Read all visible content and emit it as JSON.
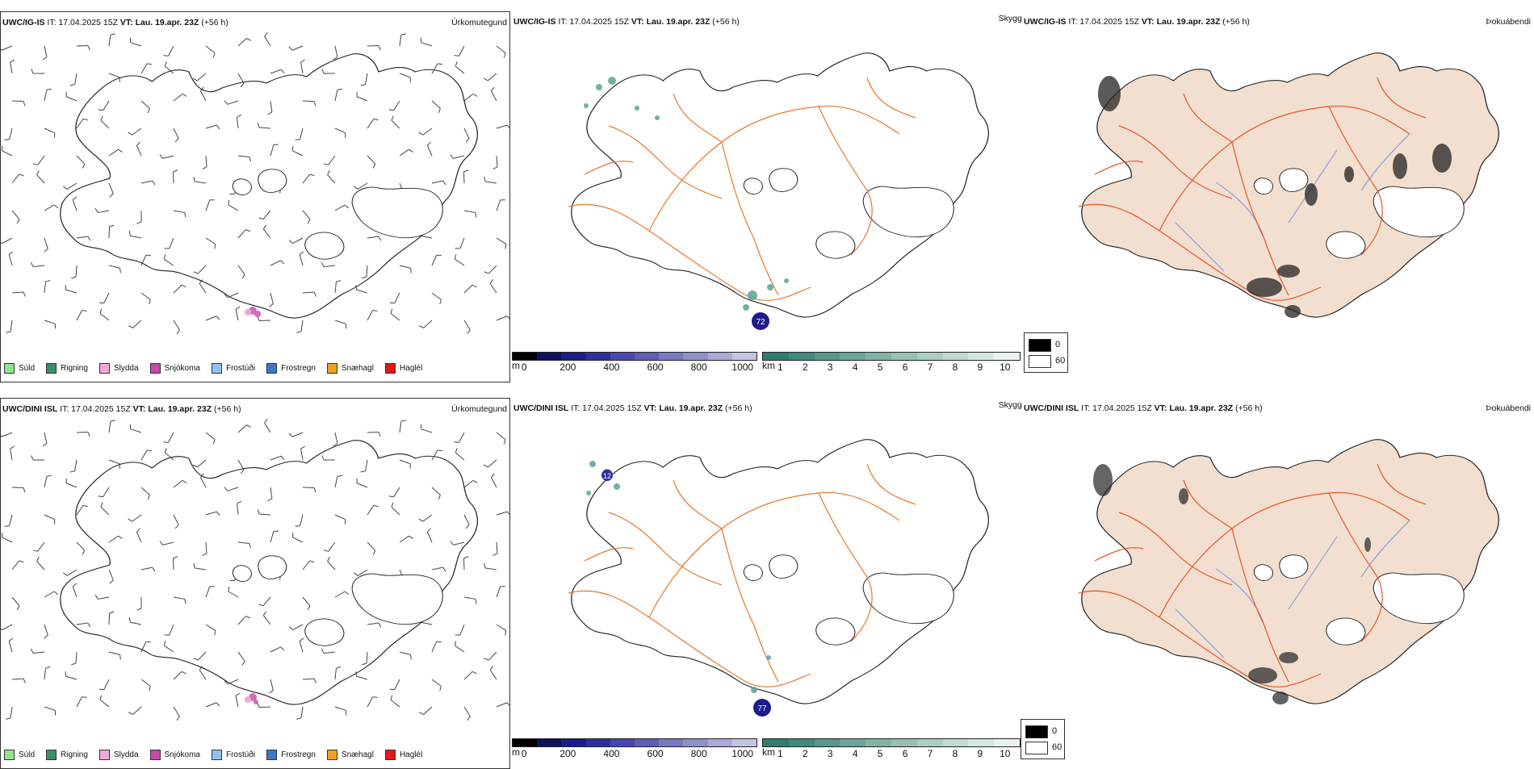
{
  "rows": [
    {
      "precip": {
        "title_model": "UWC/IG-IS",
        "title_it": " IT: 17.04.2025 15Z ",
        "title_vt": "VT: Lau. 19.apr. 23Z",
        "title_lead": " (+56 h)",
        "right_label": "Úrkomutegund"
      },
      "vis": {
        "title_model": "UWC/IG-IS",
        "title_it": " IT: 17.04.2025 15Z ",
        "title_vt": "VT: Lau. 19.apr. 23Z",
        "title_lead": " (+56 h)",
        "right_label": "Skyggni",
        "labels": [
          "72"
        ]
      },
      "fog": {
        "title_model": "UWC/IG-IS",
        "title_it": " IT: 17.04.2025 15Z ",
        "title_vt": "VT: Lau. 19.apr. 23Z",
        "title_lead": " (+56 h)",
        "right_label": "Þokuábendi"
      }
    },
    {
      "precip": {
        "title_model": "UWC/DINI ISL",
        "title_it": " IT: 17.04.2025 15Z ",
        "title_vt": "VT: Lau. 19.apr. 23Z",
        "title_lead": " (+56 h)",
        "right_label": "Úrkomutegund"
      },
      "vis": {
        "title_model": "UWC/DINI ISL",
        "title_it": " IT: 17.04.2025 15Z ",
        "title_vt": "VT: Lau. 19.apr. 23Z",
        "title_lead": " (+56 h)",
        "right_label": "Skyggni",
        "labels": [
          "12",
          "77"
        ]
      },
      "fog": {
        "title_model": "UWC/DINI ISL",
        "title_it": " IT: 17.04.2025 15Z ",
        "title_vt": "VT: Lau. 19.apr. 23Z",
        "title_lead": " (+56 h)",
        "right_label": "Þokuábendi"
      }
    }
  ],
  "precip_legend": [
    {
      "label": "Súld",
      "color": "#8ee68e"
    },
    {
      "label": "Rigning",
      "color": "#3a8f6a"
    },
    {
      "label": "Slydda",
      "color": "#f2a7d8"
    },
    {
      "label": "Snjókoma",
      "color": "#c24aa8"
    },
    {
      "label": "Frostúði",
      "color": "#8fc3f0"
    },
    {
      "label": "Frostregn",
      "color": "#3b78c4"
    },
    {
      "label": "Snæhagl",
      "color": "#f0a020"
    },
    {
      "label": "Haglél",
      "color": "#e01818"
    }
  ],
  "height_scale": {
    "unit": "m",
    "ticks": [
      "0",
      "200",
      "400",
      "600",
      "800",
      "1000"
    ],
    "colors": [
      "#000000",
      "#101060",
      "#1c1c8c",
      "#2e2ea0",
      "#4848b0",
      "#5e5eb8",
      "#7878c4",
      "#9090cc",
      "#aaaad8",
      "#c4c4e4"
    ]
  },
  "km_scale": {
    "unit": "km",
    "ticks": [
      "1",
      "2",
      "3",
      "4",
      "5",
      "6",
      "7",
      "8",
      "9",
      "10"
    ],
    "colors": [
      "#2c7f70",
      "#3f8b7d",
      "#55988a",
      "#6aa698",
      "#80b3a6",
      "#96c1b4",
      "#aacec3",
      "#bfdbd2",
      "#d3e8e1",
      "#e8f3ef"
    ]
  },
  "fog_key": {
    "low": "0",
    "high": "60",
    "low_color": "#000000",
    "high_color": "#ffffff"
  },
  "colors": {
    "road": "#e8782a",
    "road_fog": "#e8552a",
    "fog_fill": "#f2dfcf",
    "river": "#7f8fe8",
    "coast": "#222222"
  }
}
